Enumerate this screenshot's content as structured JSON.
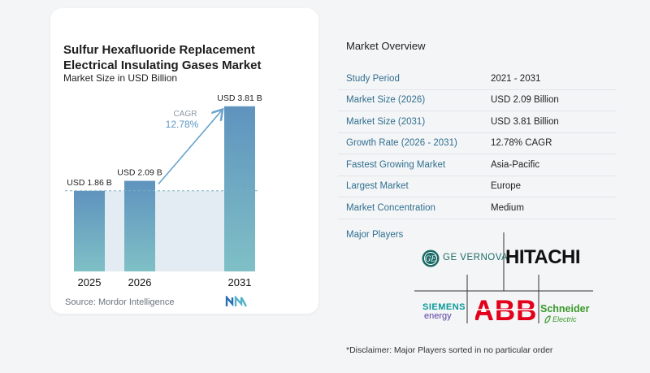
{
  "chart_panel": {
    "title_line1": "Sulfur Hexafluoride Replacement",
    "title_line2": "Electrical Insulating Gases Market",
    "subtitle": "Market Size in USD Billion",
    "source": "Source: Mordor Intelligence",
    "cagr_label": "CAGR",
    "cagr_value": "12.78%"
  },
  "chart_data": {
    "type": "bar",
    "title": "Sulfur Hexafluoride Replacement Electrical Insulating Gases Market",
    "subtitle": "Market Size in USD Billion",
    "categories": [
      "2025",
      "2026",
      "2031"
    ],
    "values": [
      1.86,
      2.09,
      3.81
    ],
    "data_labels": [
      "USD 1.86 B",
      "USD 2.09 B",
      "USD 3.81 B"
    ],
    "ylim": [
      0,
      4.2
    ],
    "annotation": {
      "label": "CAGR",
      "value": "12.78%"
    },
    "colors": {
      "bar_top": "#5f93be",
      "bar_bottom": "#7fc0c6",
      "baseline_fill": "#e3ebf3",
      "arrow": "#6aa3cc"
    }
  },
  "overview": {
    "heading": "Market Overview",
    "rows": [
      {
        "key": "Study Period",
        "value": "2021 - 2031"
      },
      {
        "key": "Market Size (2026)",
        "value": "USD 2.09 Billion"
      },
      {
        "key": "Market Size (2031)",
        "value": "USD 3.81 Billion"
      },
      {
        "key": "Growth Rate (2026 - 2031)",
        "value": "12.78% CAGR"
      },
      {
        "key": "Fastest Growing Market",
        "value": "Asia-Pacific"
      },
      {
        "key": "Largest Market",
        "value": "Europe"
      },
      {
        "key": "Market Concentration",
        "value": "Medium"
      }
    ]
  },
  "players": {
    "heading": "Major Players",
    "ge_name": "GE VERNOVA",
    "hitachi": "HITACHI",
    "abb": "ABB",
    "siemens_line1": "SIEMENS",
    "siemens_line2": "energy",
    "schneider_line1": "Schneider",
    "schneider_line2": "Electric"
  },
  "disclaimer": "*Disclaimer: Major Players sorted in no particular order"
}
